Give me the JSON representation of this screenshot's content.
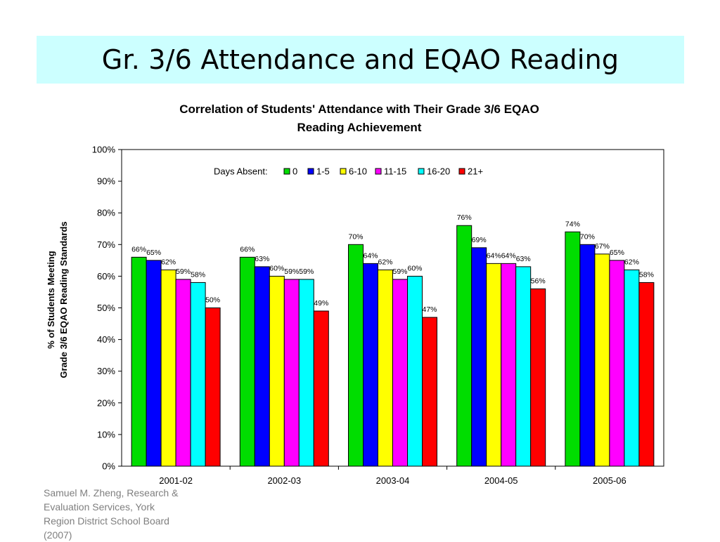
{
  "slide": {
    "title": "Gr. 3/6 Attendance and EQAO Reading"
  },
  "footer": {
    "lines": [
      "Samuel M. Zheng, Research &",
      "Evaluation Services, York",
      "Region District School Board",
      "(2007)"
    ]
  },
  "chart_data": {
    "type": "bar",
    "title_lines": [
      "Correlation of Students' Attendance with Their Grade 3/6 EQAO",
      "Reading Achievement"
    ],
    "ylabel_lines": [
      "% of Students Meeting",
      "Grade 3/6 EQAO Reading Standards"
    ],
    "xlabel": "",
    "ylim": [
      0,
      100
    ],
    "yticks": [
      "0%",
      "10%",
      "20%",
      "30%",
      "40%",
      "50%",
      "60%",
      "70%",
      "80%",
      "90%",
      "100%"
    ],
    "categories": [
      "2001-02",
      "2002-03",
      "2003-04",
      "2004-05",
      "2005-06"
    ],
    "legend_title": "Days Absent:",
    "legend_position": "top-center inside plot",
    "grid": false,
    "series": [
      {
        "name": "0",
        "color": "#00dd00",
        "values": [
          66,
          66,
          70,
          76,
          74
        ],
        "labels": [
          "66%",
          "66%",
          "70%",
          "76%",
          "74%"
        ]
      },
      {
        "name": "1-5",
        "color": "#0000ff",
        "values": [
          65,
          63,
          64,
          69,
          70
        ],
        "labels": [
          "65%",
          "63%",
          "64%",
          "69%",
          "70%"
        ]
      },
      {
        "name": "6-10",
        "color": "#ffff00",
        "values": [
          62,
          60,
          62,
          64,
          67
        ],
        "labels": [
          "62%",
          "60%",
          "62%",
          "64%",
          "67%"
        ]
      },
      {
        "name": "11-15",
        "color": "#ff00ff",
        "values": [
          59,
          59,
          59,
          64,
          65
        ],
        "labels": [
          "59%",
          "59%",
          "59%",
          "64%",
          "65%"
        ]
      },
      {
        "name": "16-20",
        "color": "#00ffff",
        "values": [
          58,
          59,
          60,
          63,
          62
        ],
        "labels": [
          "58%",
          "59%",
          "60%",
          "63%",
          "62%"
        ]
      },
      {
        "name": "21+",
        "color": "#ff0000",
        "values": [
          50,
          49,
          47,
          56,
          58
        ],
        "labels": [
          "50%",
          "49%",
          "47%",
          "56%",
          "58%"
        ]
      }
    ]
  }
}
